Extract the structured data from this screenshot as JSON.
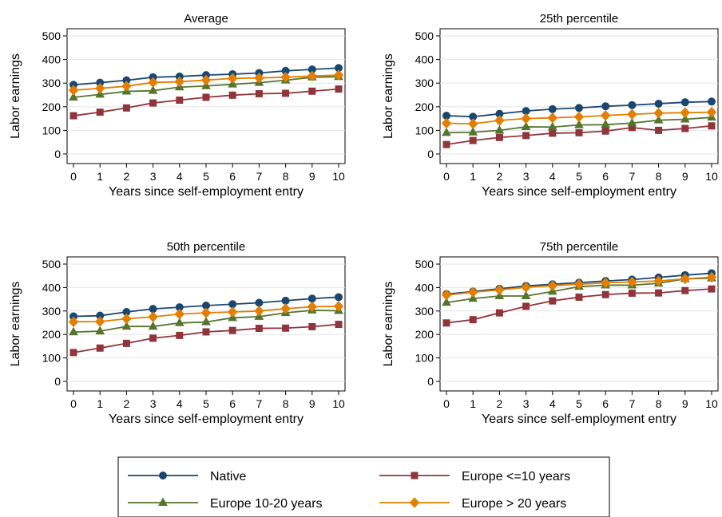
{
  "figure": {
    "panels": [
      {
        "title": "Average"
      },
      {
        "title": "25th percentile"
      },
      {
        "title": "50th percentile"
      },
      {
        "title": "75th percentile"
      }
    ]
  },
  "legend": {
    "placement": "bottom-center",
    "entries": [
      {
        "label": "Native",
        "color": "#1a476f",
        "marker": "circle"
      },
      {
        "label": "Europe <=10 years",
        "color": "#90353b",
        "marker": "square"
      },
      {
        "label": "Europe 10-20 years",
        "color": "#55752f",
        "marker": "triangle"
      },
      {
        "label": "Europe > 20 years",
        "color": "#e37e00",
        "marker": "diamond"
      }
    ]
  },
  "chart_data": [
    {
      "type": "line",
      "title": "Average",
      "xlabel": "Years since self-employment entry",
      "ylabel": "Labor earnings",
      "x": [
        0,
        1,
        2,
        3,
        4,
        5,
        6,
        7,
        8,
        9,
        10
      ],
      "ylim": [
        0,
        500
      ],
      "yticks": [
        0,
        100,
        200,
        300,
        400,
        500
      ],
      "grid": true,
      "series": [
        {
          "name": "Native",
          "values": [
            293,
            302,
            312,
            325,
            328,
            334,
            338,
            343,
            352,
            358,
            364
          ]
        },
        {
          "name": "Europe <=10 years",
          "values": [
            162,
            177,
            195,
            216,
            228,
            240,
            249,
            255,
            257,
            266,
            275
          ]
        },
        {
          "name": "Europe 10-20 years",
          "values": [
            240,
            252,
            265,
            268,
            283,
            288,
            295,
            302,
            312,
            325,
            327
          ]
        },
        {
          "name": "Europe > 20 years",
          "values": [
            270,
            278,
            287,
            303,
            306,
            313,
            320,
            322,
            325,
            330,
            334
          ]
        }
      ]
    },
    {
      "type": "line",
      "title": "25th percentile",
      "xlabel": "Years since self-employment entry",
      "ylabel": "Labor earnings",
      "x": [
        0,
        1,
        2,
        3,
        4,
        5,
        6,
        7,
        8,
        9,
        10
      ],
      "ylim": [
        0,
        500
      ],
      "yticks": [
        0,
        100,
        200,
        300,
        400,
        500
      ],
      "grid": true,
      "series": [
        {
          "name": "Native",
          "values": [
            162,
            158,
            170,
            182,
            190,
            195,
            202,
            207,
            213,
            219,
            222
          ]
        },
        {
          "name": "Europe <=10 years",
          "values": [
            40,
            57,
            70,
            78,
            88,
            90,
            97,
            112,
            100,
            108,
            119
          ]
        },
        {
          "name": "Europe 10-20 years",
          "values": [
            90,
            92,
            100,
            115,
            114,
            123,
            124,
            131,
            143,
            147,
            155
          ]
        },
        {
          "name": "Europe > 20 years",
          "values": [
            130,
            128,
            142,
            150,
            153,
            157,
            163,
            168,
            173,
            175,
            177
          ]
        }
      ]
    },
    {
      "type": "line",
      "title": "50th percentile",
      "xlabel": "Years since self-employment entry",
      "ylabel": "Labor earnings",
      "x": [
        0,
        1,
        2,
        3,
        4,
        5,
        6,
        7,
        8,
        9,
        10
      ],
      "ylim": [
        0,
        500
      ],
      "yticks": [
        0,
        100,
        200,
        300,
        400,
        500
      ],
      "grid": true,
      "series": [
        {
          "name": "Native",
          "values": [
            277,
            280,
            296,
            309,
            316,
            323,
            329,
            335,
            344,
            353,
            359
          ]
        },
        {
          "name": "Europe <=10 years",
          "values": [
            123,
            142,
            162,
            184,
            196,
            211,
            217,
            226,
            227,
            233,
            243
          ]
        },
        {
          "name": "Europe 10-20 years",
          "values": [
            210,
            214,
            234,
            234,
            249,
            253,
            271,
            276,
            292,
            303,
            301
          ]
        },
        {
          "name": "Europe > 20 years",
          "values": [
            254,
            255,
            267,
            275,
            287,
            292,
            296,
            300,
            310,
            318,
            320
          ]
        }
      ]
    },
    {
      "type": "line",
      "title": "75th percentile",
      "xlabel": "Years since self-employment entry",
      "ylabel": "Labor earnings",
      "x": [
        0,
        1,
        2,
        3,
        4,
        5,
        6,
        7,
        8,
        9,
        10
      ],
      "ylim": [
        0,
        500
      ],
      "yticks": [
        0,
        100,
        200,
        300,
        400,
        500
      ],
      "grid": true,
      "series": [
        {
          "name": "Native",
          "values": [
            372,
            383,
            395,
            407,
            414,
            421,
            428,
            434,
            443,
            453,
            461
          ]
        },
        {
          "name": "Europe <=10 years",
          "values": [
            249,
            263,
            292,
            320,
            343,
            359,
            370,
            376,
            377,
            387,
            394
          ]
        },
        {
          "name": "Europe 10-20 years",
          "values": [
            336,
            353,
            364,
            364,
            383,
            404,
            410,
            410,
            418,
            437,
            440
          ]
        },
        {
          "name": "Europe > 20 years",
          "values": [
            368,
            380,
            390,
            401,
            408,
            414,
            420,
            424,
            428,
            437,
            444
          ]
        }
      ]
    }
  ]
}
